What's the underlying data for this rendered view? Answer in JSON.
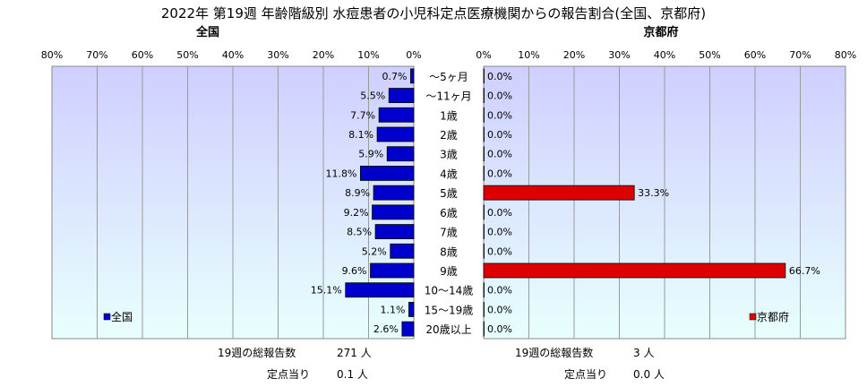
{
  "title": "2022年 第19週 年齢階級別 水痘患者の小児科定点医療機関からの報告割合(全国、京都府)",
  "colors": {
    "national_bar": "#0000cc",
    "kyoto_bar": "#dd0000",
    "plot_top": "#cfcfff",
    "plot_bottom": "#e8fffd",
    "grid": "#9a9a9a"
  },
  "chart_data": [
    {
      "type": "bar",
      "orientation": "horizontal",
      "direction": "right-to-left",
      "subtitle": "全国",
      "legend": "全国",
      "legend_position": "bottom-left",
      "categories": [
        "～5ヶ月",
        "～11ヶ月",
        "1歳",
        "2歳",
        "3歳",
        "4歳",
        "5歳",
        "6歳",
        "7歳",
        "8歳",
        "9歳",
        "10～14歳",
        "15～19歳",
        "20歳以上"
      ],
      "series": [
        {
          "name": "全国",
          "values": [
            0.7,
            5.5,
            7.7,
            8.1,
            5.9,
            11.8,
            8.9,
            9.2,
            8.5,
            5.2,
            9.6,
            15.1,
            1.1,
            2.6
          ]
        }
      ],
      "data_labels": [
        "0.7%",
        "5.5%",
        "7.7%",
        "8.1%",
        "5.9%",
        "11.8%",
        "8.9%",
        "9.2%",
        "8.5%",
        "5.2%",
        "9.6%",
        "15.1%",
        "1.1%",
        "2.6%"
      ],
      "xlim": [
        0,
        80
      ],
      "ticks": [
        "80%",
        "70%",
        "60%",
        "50%",
        "40%",
        "30%",
        "20%",
        "10%",
        "0%"
      ],
      "grid": true
    },
    {
      "type": "bar",
      "orientation": "horizontal",
      "direction": "left-to-right",
      "subtitle": "京都府",
      "legend": "京都府",
      "legend_position": "bottom-right",
      "categories": [
        "～5ヶ月",
        "～11ヶ月",
        "1歳",
        "2歳",
        "3歳",
        "4歳",
        "5歳",
        "6歳",
        "7歳",
        "8歳",
        "9歳",
        "10～14歳",
        "15～19歳",
        "20歳以上"
      ],
      "series": [
        {
          "name": "京都府",
          "values": [
            0,
            0,
            0,
            0,
            0,
            0,
            33.3,
            0,
            0,
            0,
            66.7,
            0,
            0,
            0
          ]
        }
      ],
      "data_labels": [
        "0.0%",
        "0.0%",
        "0.0%",
        "0.0%",
        "0.0%",
        "0.0%",
        "33.3%",
        "0.0%",
        "0.0%",
        "0.0%",
        "66.7%",
        "0.0%",
        "0.0%",
        "0.0%"
      ],
      "xlim": [
        0,
        80
      ],
      "ticks": [
        "0%",
        "10%",
        "20%",
        "30%",
        "40%",
        "50%",
        "60%",
        "70%",
        "80%"
      ],
      "grid": true
    }
  ],
  "footer": {
    "national": {
      "total_label": "19週の総報告数",
      "total_value": "271 人",
      "per_label": "定点当り",
      "per_value": "0.1 人"
    },
    "kyoto": {
      "total_label": "19週の総報告数",
      "total_value": "3 人",
      "per_label": "定点当り",
      "per_value": "0.0 人"
    }
  }
}
